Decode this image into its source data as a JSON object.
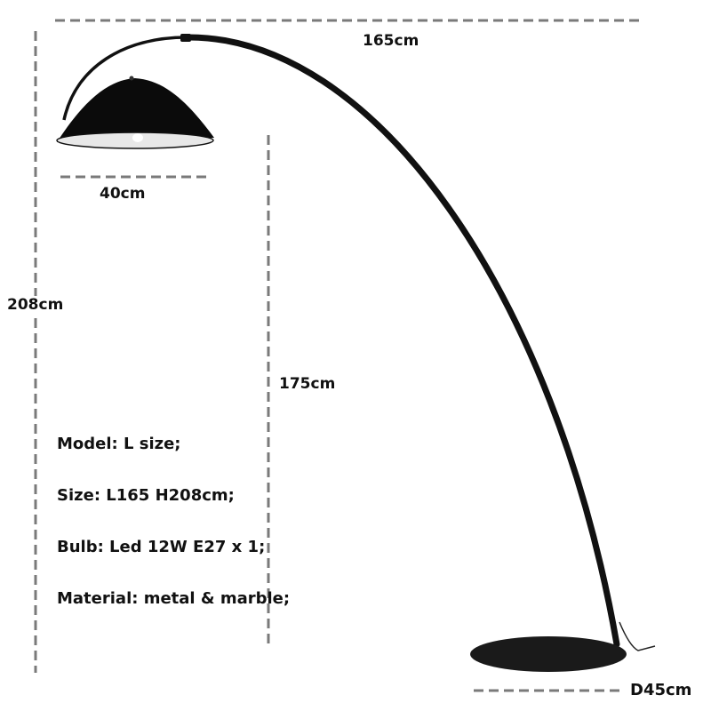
{
  "dimensions": {
    "width_total": "165cm",
    "shade_diameter": "40cm",
    "height_total": "208cm",
    "height_under_shade": "175cm",
    "base_diameter": "D45cm"
  },
  "specs": [
    "Model: L size;",
    "Size: L165 H208cm;",
    "Bulb: Led 12W E27 x 1;",
    "Material: metal & marble;"
  ],
  "colors": {
    "lamp": "#111111",
    "dimension_line": "#7a7a7a",
    "shade_inner": "#e8e8e8"
  }
}
